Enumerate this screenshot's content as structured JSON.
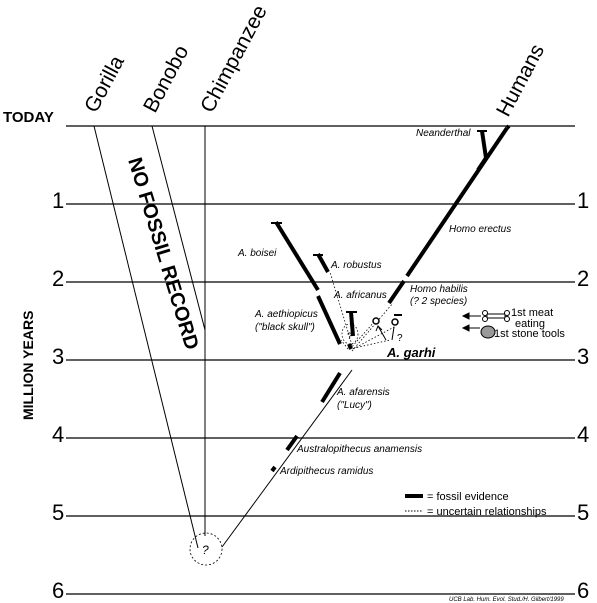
{
  "taxa": {
    "gorilla": "Gorilla",
    "bonobo": "Bonobo",
    "chimpanzee": "Chimpanzee",
    "humans": "Humans"
  },
  "axis": {
    "today": "TODAY",
    "label": "MILLION YEARS",
    "ticks": [
      "1",
      "2",
      "3",
      "4",
      "5",
      "6"
    ]
  },
  "no_fossil_record": "NO FOSSIL RECORD",
  "species": {
    "neanderthal": "Neanderthal",
    "homo_erectus": "Homo erectus",
    "a_boisei": "A. boisei",
    "a_robustus": "A. robustus",
    "a_africanus": "A. africanus",
    "homo_habilis_1": "Homo habilis",
    "homo_habilis_2": "(? 2 species)",
    "a_aethiopicus_1": "A. aethiopicus",
    "a_aethiopicus_2": "(\"black skull\")",
    "a_garhi": "A. garhi",
    "a_afarensis_1": "A. afarensis",
    "a_afarensis_2": "(\"Lucy\")",
    "australopithecus_anamensis": "Australopithecus anamensis",
    "ardipithecus_ramidus": "Ardipithecus ramidus"
  },
  "question_mark": "?",
  "annotations": {
    "first_meat_1": "1st meat",
    "first_meat_2": "eating",
    "first_stone_tools": "1st stone tools"
  },
  "legend": {
    "fossil_evidence": "= fossil evidence",
    "uncertain_relationships": "= uncertain relationships"
  },
  "credit": "UCB Lab. Hum. Evol. Stud./H. Gilbert/1999"
}
